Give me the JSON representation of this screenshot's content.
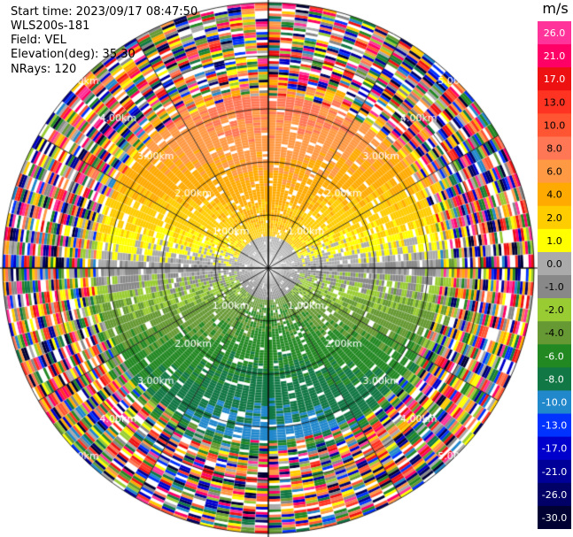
{
  "header": {
    "start_time": "Start time: 2023/09/17 08:47:50",
    "instrument": "WLS200s-181",
    "field": "Field: VEL",
    "elevation": "Elevation(deg): 35.30",
    "nrays": "NRays: 120"
  },
  "chart_data": {
    "type": "heatmap",
    "subtype": "ppi-polar",
    "field": "VEL",
    "n_rays": 120,
    "elevation_deg": 35.3,
    "range_rings_km": [
      1.0,
      2.0,
      3.0,
      4.0,
      5.0
    ],
    "ring_labels": [
      "1.00km",
      "2.00km",
      "3.00km",
      "4.00km",
      "5.00km"
    ],
    "colorbar": {
      "unit": "m/s",
      "ticks": [
        "26.0",
        "21.0",
        "17.0",
        "13.0",
        "10.0",
        "8.0",
        "6.0",
        "4.0",
        "2.0",
        "1.0",
        "0.0",
        "-1.0",
        "-2.0",
        "-4.0",
        "-6.0",
        "-8.0",
        "-10.0",
        "-13.0",
        "-17.0",
        "-21.0",
        "-26.0",
        "-30.0"
      ],
      "colors": [
        "#ff3399",
        "#ff0066",
        "#ee1111",
        "#ff3322",
        "#ff5533",
        "#ff7755",
        "#ff9944",
        "#ffaa00",
        "#ffcc00",
        "#ffff00",
        "#aaaaaa",
        "#888888",
        "#99cc33",
        "#669933",
        "#228822",
        "#117744",
        "#2288cc",
        "#0033ff",
        "#0000cc",
        "#000099",
        "#000066",
        "#000033"
      ]
    },
    "pattern_summary": {
      "near_range_north": "positive 2-8 m/s (yellow/orange)",
      "near_range_south": "negative -2 to -6 m/s (green)",
      "beyond_range_km": 3.3,
      "beyond_range_texture": "noisy random velocities"
    }
  }
}
